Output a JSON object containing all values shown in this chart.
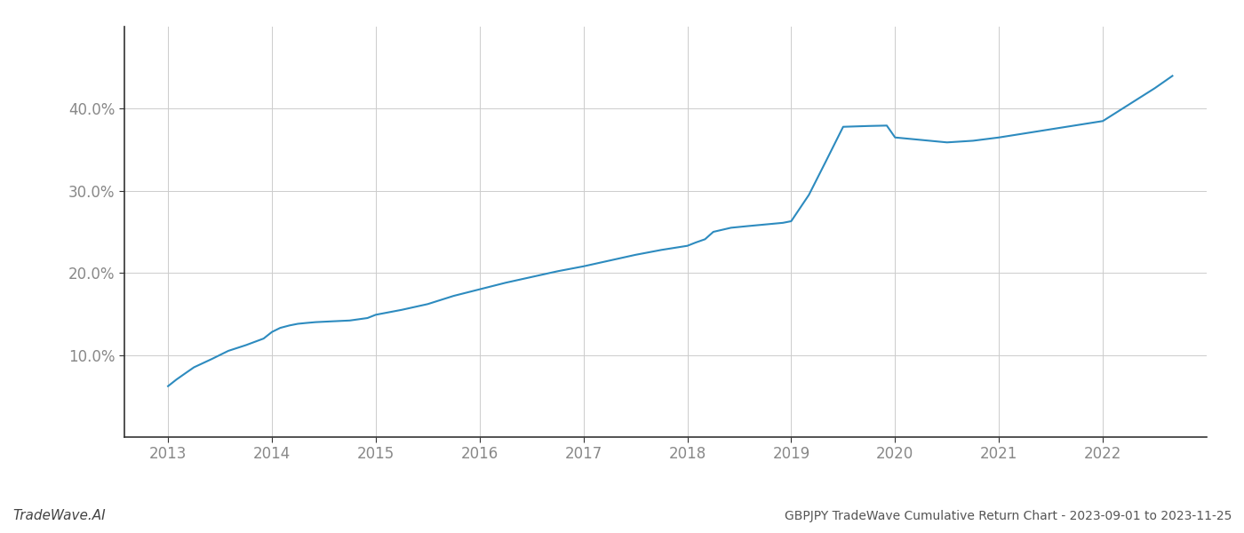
{
  "title": "GBPJPY TradeWave Cumulative Return Chart - 2023-09-01 to 2023-11-25",
  "watermark": "TradeWave.AI",
  "line_color": "#2d8bbf",
  "line_width": 1.5,
  "background_color": "#ffffff",
  "grid_color": "#cccccc",
  "x_years": [
    2013,
    2014,
    2015,
    2016,
    2017,
    2018,
    2019,
    2020,
    2021,
    2022
  ],
  "data_x": [
    2013.0,
    2013.08,
    2013.17,
    2013.25,
    2013.42,
    2013.58,
    2013.75,
    2013.92,
    2014.0,
    2014.08,
    2014.17,
    2014.25,
    2014.33,
    2014.42,
    2014.58,
    2014.75,
    2014.92,
    2015.0,
    2015.25,
    2015.5,
    2015.75,
    2016.0,
    2016.25,
    2016.5,
    2016.75,
    2017.0,
    2017.25,
    2017.5,
    2017.75,
    2018.0,
    2018.08,
    2018.17,
    2018.25,
    2018.42,
    2018.58,
    2018.75,
    2018.92,
    2019.0,
    2019.17,
    2019.33,
    2019.5,
    2019.75,
    2019.92,
    2020.0,
    2020.25,
    2020.5,
    2020.75,
    2021.0,
    2021.25,
    2021.5,
    2021.75,
    2022.0,
    2022.25,
    2022.5,
    2022.67
  ],
  "data_y": [
    6.2,
    7.0,
    7.8,
    8.5,
    9.5,
    10.5,
    11.2,
    12.0,
    12.8,
    13.3,
    13.6,
    13.8,
    13.9,
    14.0,
    14.1,
    14.2,
    14.5,
    14.9,
    15.5,
    16.2,
    17.2,
    18.0,
    18.8,
    19.5,
    20.2,
    20.8,
    21.5,
    22.2,
    22.8,
    23.3,
    23.7,
    24.1,
    25.0,
    25.5,
    25.7,
    25.9,
    26.1,
    26.3,
    29.5,
    33.5,
    37.8,
    37.9,
    37.95,
    36.5,
    36.2,
    35.9,
    36.1,
    36.5,
    37.0,
    37.5,
    38.0,
    38.5,
    40.5,
    42.5,
    44.0
  ],
  "ylim": [
    0,
    50
  ],
  "xlim_left": 2012.58,
  "xlim_right": 2023.0,
  "yticks": [
    10.0,
    20.0,
    30.0,
    40.0
  ],
  "ytick_labels": [
    "10.0%",
    "20.0%",
    "30.0%",
    "40.0%"
  ],
  "title_fontsize": 10,
  "tick_fontsize": 12,
  "watermark_fontsize": 11,
  "title_color": "#555555",
  "tick_color": "#888888",
  "watermark_color": "#444444",
  "left_spine_color": "#333333",
  "bottom_spine_color": "#333333"
}
